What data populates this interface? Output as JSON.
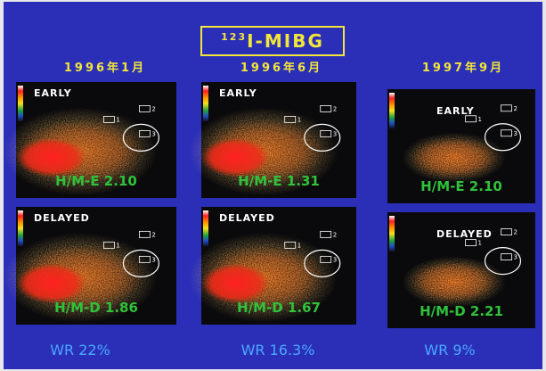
{
  "title": {
    "sup": "123",
    "main": "I-MIBG"
  },
  "columns": [
    {
      "date": "1996年1月",
      "washout": "WR 22%",
      "panels": [
        {
          "phase": "EARLY",
          "ratio": "H/M-E 2.10",
          "rois": [
            "1",
            "2",
            "3"
          ]
        },
        {
          "phase": "DELAYED",
          "ratio": "H/M-D 1.86",
          "rois": [
            "1",
            "2",
            "3"
          ]
        }
      ]
    },
    {
      "date": "1996年6月",
      "washout": "WR 16.3%",
      "panels": [
        {
          "phase": "EARLY",
          "ratio": "H/M-E 1.31",
          "rois": [
            "1",
            "2",
            "3"
          ]
        },
        {
          "phase": "DELAYED",
          "ratio": "H/M-D 1.67",
          "rois": [
            "1",
            "2",
            "3"
          ]
        }
      ]
    },
    {
      "date": "1997年9月",
      "washout": "WR 9%",
      "panels": [
        {
          "phase": "EARLY",
          "ratio": "H/M-E 2.10",
          "rois": [
            "1",
            "2",
            "3"
          ]
        },
        {
          "phase": "DELAYED",
          "ratio": "H/M-D 2.21",
          "rois": [
            "1",
            "2",
            "3"
          ]
        }
      ]
    }
  ]
}
